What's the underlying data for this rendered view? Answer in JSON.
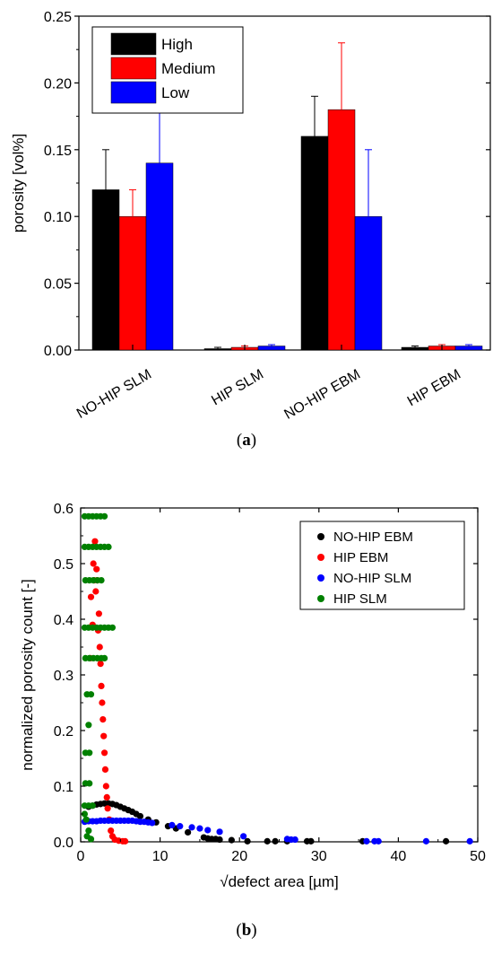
{
  "panels": {
    "a": {
      "label_open": "(",
      "label_letter": "a",
      "label_close": ")"
    },
    "b": {
      "label_open": "(",
      "label_letter": "b",
      "label_close": ")"
    }
  },
  "chart_data": [
    {
      "id": "a",
      "type": "bar",
      "title": "",
      "xlabel": "",
      "ylabel": "porosity [vol%]",
      "ylim": [
        0,
        0.25
      ],
      "yticks": [
        "0.00",
        "0.05",
        "0.10",
        "0.15",
        "0.20",
        "0.25"
      ],
      "categories": [
        "NO-HIP SLM",
        "HIP SLM",
        "NO-HIP EBM",
        "HIP EBM"
      ],
      "legend": "top-left",
      "series": [
        {
          "name": "High",
          "color": "#000000",
          "values": [
            0.12,
            0.001,
            0.16,
            0.002
          ],
          "errors": [
            0.03,
            0.001,
            0.03,
            0.001
          ]
        },
        {
          "name": "Medium",
          "color": "#ff0000",
          "values": [
            0.1,
            0.002,
            0.18,
            0.003
          ],
          "errors": [
            0.02,
            0.001,
            0.05,
            0.001
          ]
        },
        {
          "name": "Low",
          "color": "#0000ff",
          "values": [
            0.14,
            0.003,
            0.1,
            0.003
          ],
          "errors": [
            0.04,
            0.001,
            0.05,
            0.001
          ]
        }
      ]
    },
    {
      "id": "b",
      "type": "scatter",
      "title": "",
      "xlabel": "√defect area [µm]",
      "ylabel": "normalized porosity count [-]",
      "xlim": [
        0,
        50
      ],
      "ylim": [
        0,
        0.6
      ],
      "xticks": [
        "0",
        "10",
        "20",
        "30",
        "40",
        "50"
      ],
      "yticks": [
        "0.0",
        "0.1",
        "0.2",
        "0.3",
        "0.4",
        "0.5",
        "0.6"
      ],
      "legend": "top-right",
      "series": [
        {
          "name": "NO-HIP EBM",
          "color": "#000000",
          "points": [
            [
              1.0,
              0.063
            ],
            [
              1.5,
              0.065
            ],
            [
              2.0,
              0.067
            ],
            [
              2.5,
              0.068
            ],
            [
              3.0,
              0.069
            ],
            [
              3.5,
              0.069
            ],
            [
              4.0,
              0.068
            ],
            [
              4.5,
              0.066
            ],
            [
              5.0,
              0.063
            ],
            [
              5.5,
              0.06
            ],
            [
              6.0,
              0.057
            ],
            [
              6.5,
              0.054
            ],
            [
              7.0,
              0.05
            ],
            [
              7.5,
              0.046
            ],
            [
              8.5,
              0.04
            ],
            [
              9.5,
              0.035
            ],
            [
              11.0,
              0.028
            ],
            [
              12.0,
              0.024
            ],
            [
              13.5,
              0.017
            ],
            [
              15.5,
              0.008
            ],
            [
              16.0,
              0.006
            ],
            [
              16.5,
              0.005
            ],
            [
              17.0,
              0.005
            ],
            [
              17.5,
              0.004
            ],
            [
              19.0,
              0.003
            ],
            [
              21.0,
              0.001
            ],
            [
              23.5,
              0.001
            ],
            [
              24.5,
              0.001
            ],
            [
              26.0,
              0.001
            ],
            [
              28.5,
              0.001
            ],
            [
              29.0,
              0.001
            ],
            [
              35.5,
              0.001
            ],
            [
              46.0,
              0.001
            ]
          ]
        },
        {
          "name": "HIP EBM",
          "color": "#ff0000",
          "points": [
            [
              1.2,
              0.33
            ],
            [
              1.3,
              0.44
            ],
            [
              1.5,
              0.39
            ],
            [
              1.6,
              0.5
            ],
            [
              1.7,
              0.47
            ],
            [
              1.8,
              0.54
            ],
            [
              1.9,
              0.45
            ],
            [
              2.0,
              0.49
            ],
            [
              2.1,
              0.47
            ],
            [
              2.2,
              0.38
            ],
            [
              2.3,
              0.41
            ],
            [
              2.4,
              0.35
            ],
            [
              2.5,
              0.32
            ],
            [
              2.6,
              0.28
            ],
            [
              2.7,
              0.25
            ],
            [
              2.8,
              0.22
            ],
            [
              2.9,
              0.19
            ],
            [
              3.0,
              0.16
            ],
            [
              3.1,
              0.13
            ],
            [
              3.2,
              0.1
            ],
            [
              3.3,
              0.08
            ],
            [
              3.4,
              0.06
            ],
            [
              3.6,
              0.04
            ],
            [
              3.8,
              0.02
            ],
            [
              4.0,
              0.01
            ],
            [
              4.3,
              0.004
            ],
            [
              4.8,
              0.002
            ],
            [
              5.3,
              0.001
            ],
            [
              5.6,
              0.001
            ]
          ]
        },
        {
          "name": "NO-HIP SLM",
          "color": "#0000ff",
          "points": [
            [
              0.5,
              0.036
            ],
            [
              1.0,
              0.037
            ],
            [
              1.5,
              0.037
            ],
            [
              2.0,
              0.037
            ],
            [
              2.5,
              0.038
            ],
            [
              3.0,
              0.038
            ],
            [
              3.5,
              0.038
            ],
            [
              4.0,
              0.038
            ],
            [
              4.5,
              0.038
            ],
            [
              5.0,
              0.038
            ],
            [
              5.5,
              0.038
            ],
            [
              6.0,
              0.038
            ],
            [
              6.5,
              0.038
            ],
            [
              7.0,
              0.037
            ],
            [
              7.5,
              0.036
            ],
            [
              8.0,
              0.036
            ],
            [
              8.5,
              0.035
            ],
            [
              9.0,
              0.034
            ],
            [
              11.5,
              0.03
            ],
            [
              12.5,
              0.028
            ],
            [
              14.0,
              0.026
            ],
            [
              15.0,
              0.024
            ],
            [
              16.0,
              0.021
            ],
            [
              17.5,
              0.018
            ],
            [
              20.5,
              0.01
            ],
            [
              26.0,
              0.005
            ],
            [
              26.5,
              0.004
            ],
            [
              27.0,
              0.004
            ],
            [
              36.0,
              0.001
            ],
            [
              37.0,
              0.001
            ],
            [
              37.5,
              0.001
            ],
            [
              43.5,
              0.001
            ],
            [
              49.0,
              0.001
            ]
          ]
        },
        {
          "name": "HIP SLM",
          "color": "#008000",
          "points": [
            [
              0.5,
              0.585
            ],
            [
              1.0,
              0.585
            ],
            [
              1.5,
              0.585
            ],
            [
              2.0,
              0.585
            ],
            [
              2.5,
              0.585
            ],
            [
              3.0,
              0.585
            ],
            [
              0.5,
              0.53
            ],
            [
              1.0,
              0.53
            ],
            [
              1.5,
              0.53
            ],
            [
              2.0,
              0.53
            ],
            [
              2.5,
              0.53
            ],
            [
              3.0,
              0.53
            ],
            [
              3.5,
              0.53
            ],
            [
              0.6,
              0.47
            ],
            [
              1.1,
              0.47
            ],
            [
              1.6,
              0.47
            ],
            [
              2.1,
              0.47
            ],
            [
              2.6,
              0.47
            ],
            [
              0.5,
              0.385
            ],
            [
              1.0,
              0.385
            ],
            [
              1.5,
              0.385
            ],
            [
              2.0,
              0.385
            ],
            [
              2.5,
              0.385
            ],
            [
              3.0,
              0.385
            ],
            [
              3.5,
              0.385
            ],
            [
              4.0,
              0.385
            ],
            [
              0.6,
              0.33
            ],
            [
              1.1,
              0.33
            ],
            [
              1.6,
              0.33
            ],
            [
              2.1,
              0.33
            ],
            [
              2.6,
              0.33
            ],
            [
              3.0,
              0.33
            ],
            [
              0.8,
              0.265
            ],
            [
              1.3,
              0.265
            ],
            [
              1.0,
              0.21
            ],
            [
              0.6,
              0.16
            ],
            [
              1.1,
              0.16
            ],
            [
              0.6,
              0.105
            ],
            [
              1.1,
              0.105
            ],
            [
              0.5,
              0.065
            ],
            [
              1.0,
              0.065
            ],
            [
              1.5,
              0.065
            ],
            [
              0.5,
              0.05
            ],
            [
              0.7,
              0.04
            ],
            [
              0.8,
              0.01
            ],
            [
              1.3,
              0.005
            ],
            [
              1.0,
              0.02
            ]
          ]
        }
      ]
    }
  ]
}
